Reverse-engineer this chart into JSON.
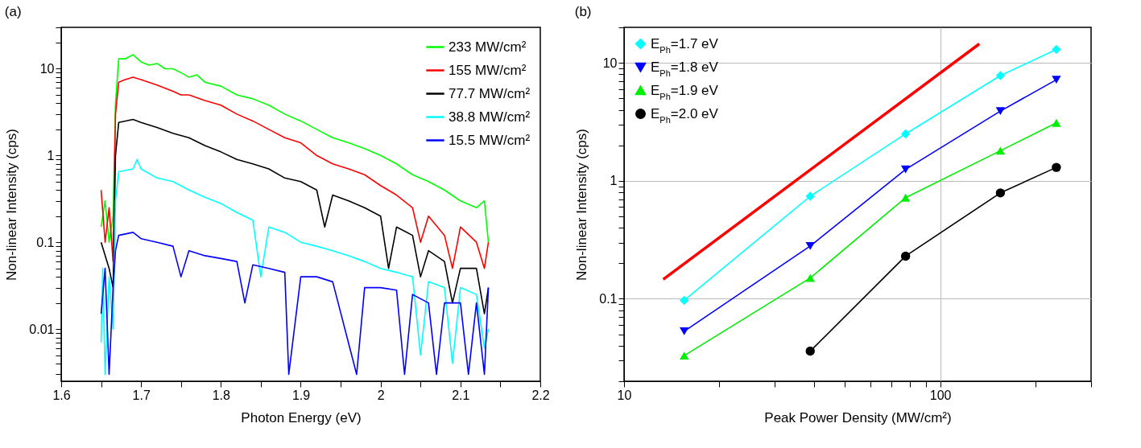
{
  "chart_data": [
    {
      "type": "line",
      "title": "(a)",
      "xlabel": "Photon Energy (eV)",
      "ylabel": "Non-linear Intensity (cps)",
      "log": "y",
      "legend": "top right",
      "xlim": [
        1.6,
        2.2
      ],
      "ylim": [
        0.0025,
        30
      ],
      "xticks": [
        1.6,
        {
          "value": 1.65,
          "label": null
        },
        1.7,
        {
          "value": 1.75,
          "label": null
        },
        1.8,
        {
          "value": 1.85,
          "label": null
        },
        1.9,
        {
          "value": 1.95,
          "label": null
        },
        2.0,
        {
          "value": 2.05,
          "label": null
        },
        2.1,
        {
          "value": 2.15,
          "label": null
        },
        2.2
      ],
      "yticks": [
        {
          "value": 0.003,
          "label": null
        },
        {
          "value": 0.004,
          "label": null
        },
        {
          "value": 0.005,
          "label": null
        },
        {
          "value": 0.006,
          "label": null
        },
        {
          "value": 0.007,
          "label": null
        },
        {
          "value": 0.008,
          "label": null
        },
        {
          "value": 0.009,
          "label": null
        },
        0.01,
        {
          "value": 0.02,
          "label": null
        },
        {
          "value": 0.03,
          "label": null
        },
        {
          "value": 0.04,
          "label": null
        },
        {
          "value": 0.05,
          "label": null
        },
        {
          "value": 0.06,
          "label": null
        },
        {
          "value": 0.07,
          "label": null
        },
        {
          "value": 0.08,
          "label": null
        },
        {
          "value": 0.09,
          "label": null
        },
        0.1,
        {
          "value": 0.2,
          "label": null
        },
        {
          "value": 0.3,
          "label": null
        },
        {
          "value": 0.4,
          "label": null
        },
        {
          "value": 0.5,
          "label": null
        },
        {
          "value": 0.6,
          "label": null
        },
        {
          "value": 0.7,
          "label": null
        },
        {
          "value": 0.8,
          "label": null
        },
        {
          "value": 0.9,
          "label": null
        },
        1,
        {
          "value": 2,
          "label": null
        },
        {
          "value": 3,
          "label": null
        },
        {
          "value": 4,
          "label": null
        },
        {
          "value": 5,
          "label": null
        },
        {
          "value": 6,
          "label": null
        },
        {
          "value": 7,
          "label": null
        },
        {
          "value": 8,
          "label": null
        },
        {
          "value": 9,
          "label": null
        },
        10,
        {
          "value": 20,
          "label": null
        },
        {
          "value": 30,
          "label": null
        }
      ],
      "series": [
        {
          "name": "233 MW/cm²",
          "color": "#00ff00",
          "x": [
            1.65,
            1.655,
            1.66,
            1.665,
            1.668,
            1.672,
            1.68,
            1.69,
            1.7,
            1.71,
            1.72,
            1.73,
            1.74,
            1.75,
            1.76,
            1.77,
            1.78,
            1.8,
            1.82,
            1.84,
            1.86,
            1.88,
            1.9,
            1.92,
            1.94,
            1.96,
            1.98,
            2.0,
            2.02,
            2.04,
            2.06,
            2.08,
            2.1,
            2.12,
            2.13,
            2.135
          ],
          "values": [
            0.15,
            0.3,
            0.1,
            0.2,
            4,
            13,
            13,
            14.5,
            12,
            11,
            11.5,
            10,
            10,
            9,
            8,
            8.5,
            7,
            6.3,
            5,
            4.5,
            3.8,
            3,
            2.5,
            2,
            1.6,
            1.4,
            1.2,
            1,
            0.8,
            0.6,
            0.5,
            0.4,
            0.3,
            0.25,
            0.3,
            0.1
          ]
        },
        {
          "name": "155 MW/cm²",
          "color": "#ff0000",
          "x": [
            1.65,
            1.655,
            1.66,
            1.665,
            1.668,
            1.672,
            1.68,
            1.69,
            1.7,
            1.72,
            1.74,
            1.75,
            1.76,
            1.78,
            1.8,
            1.82,
            1.84,
            1.86,
            1.88,
            1.9,
            1.92,
            1.94,
            1.96,
            1.98,
            2.0,
            2.02,
            2.04,
            2.05,
            2.06,
            2.08,
            2.09,
            2.1,
            2.12,
            2.13,
            2.135
          ],
          "values": [
            0.4,
            0.1,
            0.25,
            0.06,
            3,
            7,
            7.5,
            8,
            7.5,
            6.5,
            5.5,
            5,
            5,
            4.3,
            3.8,
            3,
            2.5,
            2,
            1.6,
            1.4,
            1,
            0.8,
            0.7,
            0.6,
            0.45,
            0.35,
            0.25,
            0.1,
            0.2,
            0.12,
            0.05,
            0.15,
            0.1,
            0.05,
            0.1
          ]
        },
        {
          "name": "77.7 MW/cm²",
          "color": "#000000",
          "x": [
            1.65,
            1.66,
            1.665,
            1.668,
            1.672,
            1.69,
            1.7,
            1.72,
            1.74,
            1.76,
            1.78,
            1.8,
            1.82,
            1.84,
            1.86,
            1.88,
            1.9,
            1.92,
            1.93,
            1.94,
            1.96,
            1.98,
            2.0,
            2.01,
            2.02,
            2.04,
            2.05,
            2.06,
            2.08,
            2.09,
            2.1,
            2.12,
            2.13,
            2.135
          ],
          "values": [
            0.1,
            0.05,
            0.03,
            1,
            2.4,
            2.6,
            2.4,
            2.1,
            1.8,
            1.6,
            1.3,
            1.1,
            0.9,
            0.8,
            0.7,
            0.55,
            0.5,
            0.4,
            0.15,
            0.35,
            0.3,
            0.25,
            0.2,
            0.05,
            0.15,
            0.12,
            0.04,
            0.08,
            0.06,
            0.02,
            0.05,
            0.05,
            0.015,
            0.03
          ]
        },
        {
          "name": "38.8 MW/cm²",
          "color": "#00ffff",
          "x": [
            1.65,
            1.652,
            1.655,
            1.66,
            1.665,
            1.668,
            1.672,
            1.69,
            1.695,
            1.7,
            1.72,
            1.74,
            1.76,
            1.78,
            1.8,
            1.82,
            1.84,
            1.85,
            1.86,
            1.88,
            1.9,
            1.92,
            1.94,
            1.96,
            1.98,
            2.0,
            2.02,
            2.04,
            2.05,
            2.06,
            2.08,
            2.09,
            2.1,
            2.12,
            2.13,
            2.135
          ],
          "values": [
            0.007,
            0.05,
            0.003,
            0.04,
            0.01,
            0.3,
            0.65,
            0.7,
            0.9,
            0.7,
            0.55,
            0.5,
            0.4,
            0.33,
            0.28,
            0.22,
            0.18,
            0.04,
            0.15,
            0.13,
            0.1,
            0.09,
            0.08,
            0.07,
            0.06,
            0.05,
            0.045,
            0.04,
            0.005,
            0.035,
            0.03,
            0.004,
            0.03,
            0.025,
            0.006,
            0.01
          ]
        },
        {
          "name": "15.5 MW/cm²",
          "color": "#0000ff",
          "x": [
            1.65,
            1.655,
            1.66,
            1.665,
            1.668,
            1.672,
            1.69,
            1.7,
            1.72,
            1.74,
            1.75,
            1.76,
            1.78,
            1.8,
            1.82,
            1.83,
            1.84,
            1.86,
            1.88,
            1.885,
            1.9,
            1.92,
            1.94,
            1.97,
            1.98,
            2.0,
            2.02,
            2.03,
            2.04,
            2.06,
            2.07,
            2.08,
            2.1,
            2.11,
            2.12,
            2.13,
            2.135
          ],
          "values": [
            0.015,
            0.05,
            0.003,
            0.03,
            0.08,
            0.12,
            0.13,
            0.11,
            0.1,
            0.09,
            0.04,
            0.08,
            0.07,
            0.065,
            0.06,
            0.02,
            0.055,
            0.05,
            0.045,
            0.003,
            0.04,
            0.04,
            0.035,
            0.003,
            0.03,
            0.03,
            0.028,
            0.003,
            0.025,
            0.02,
            0.003,
            0.02,
            0.02,
            0.003,
            0.02,
            0.003,
            0.03
          ]
        }
      ]
    },
    {
      "type": "line",
      "title": "(b)",
      "xlabel": "Peak Power Density (MW/cm²)",
      "ylabel": "Non-linear Intensity (cps)",
      "log": "xy",
      "grid": true,
      "legend": "top left",
      "xlim": [
        10,
        300
      ],
      "ylim": [
        0.02,
        20
      ],
      "xticks": [
        10,
        {
          "value": 20,
          "label": null
        },
        {
          "value": 30,
          "label": null
        },
        {
          "value": 40,
          "label": null
        },
        {
          "value": 50,
          "label": null
        },
        {
          "value": 60,
          "label": null
        },
        {
          "value": 70,
          "label": null
        },
        {
          "value": 80,
          "label": null
        },
        {
          "value": 90,
          "label": null
        },
        100,
        {
          "value": 200,
          "label": null
        },
        {
          "value": 300,
          "label": null
        }
      ],
      "yticks": [
        {
          "value": 0.02,
          "label": null
        },
        {
          "value": 0.03,
          "label": null
        },
        {
          "value": 0.04,
          "label": null
        },
        {
          "value": 0.05,
          "label": null
        },
        {
          "value": 0.06,
          "label": null
        },
        {
          "value": 0.07,
          "label": null
        },
        {
          "value": 0.08,
          "label": null
        },
        {
          "value": 0.09,
          "label": null
        },
        0.1,
        {
          "value": 0.2,
          "label": null
        },
        {
          "value": 0.3,
          "label": null
        },
        {
          "value": 0.4,
          "label": null
        },
        {
          "value": 0.5,
          "label": null
        },
        {
          "value": 0.6,
          "label": null
        },
        {
          "value": 0.7,
          "label": null
        },
        {
          "value": 0.8,
          "label": null
        },
        {
          "value": 0.9,
          "label": null
        },
        1,
        {
          "value": 2,
          "label": null
        },
        {
          "value": 3,
          "label": null
        },
        {
          "value": 4,
          "label": null
        },
        {
          "value": 5,
          "label": null
        },
        {
          "value": 6,
          "label": null
        },
        {
          "value": 7,
          "label": null
        },
        {
          "value": 8,
          "label": null
        },
        {
          "value": 9,
          "label": null
        },
        10,
        {
          "value": 20,
          "label": null
        }
      ],
      "x": [
        15.5,
        38.8,
        77.7,
        155,
        233
      ],
      "series": [
        {
          "name": "E$_{Ph}$=1.7 eV",
          "color": "#00ffff",
          "marker": "diamond",
          "values": [
            0.097,
            0.74,
            2.5,
            7.8,
            13
          ]
        },
        {
          "name": "E$_{Ph}$=1.8 eV",
          "color": "#0000ff",
          "marker": "triangle-down",
          "values": [
            0.053,
            0.28,
            1.25,
            3.9,
            7.2
          ]
        },
        {
          "name": "E$_{Ph}$=1.9 eV",
          "color": "#00ee00",
          "marker": "triangle",
          "values": [
            0.033,
            0.15,
            0.72,
            1.8,
            3.1
          ]
        },
        {
          "name": " E$_{Ph}$=2.0 eV",
          "color": "#000000",
          "marker": "circle",
          "values": [
            null,
            0.036,
            0.23,
            0.79,
            1.3
          ]
        },
        {
          "color": "#ff0000",
          "marker": "none",
          "x": [
            13.3,
            133
          ],
          "values": [
            0.146,
            14.5
          ]
        }
      ]
    }
  ]
}
